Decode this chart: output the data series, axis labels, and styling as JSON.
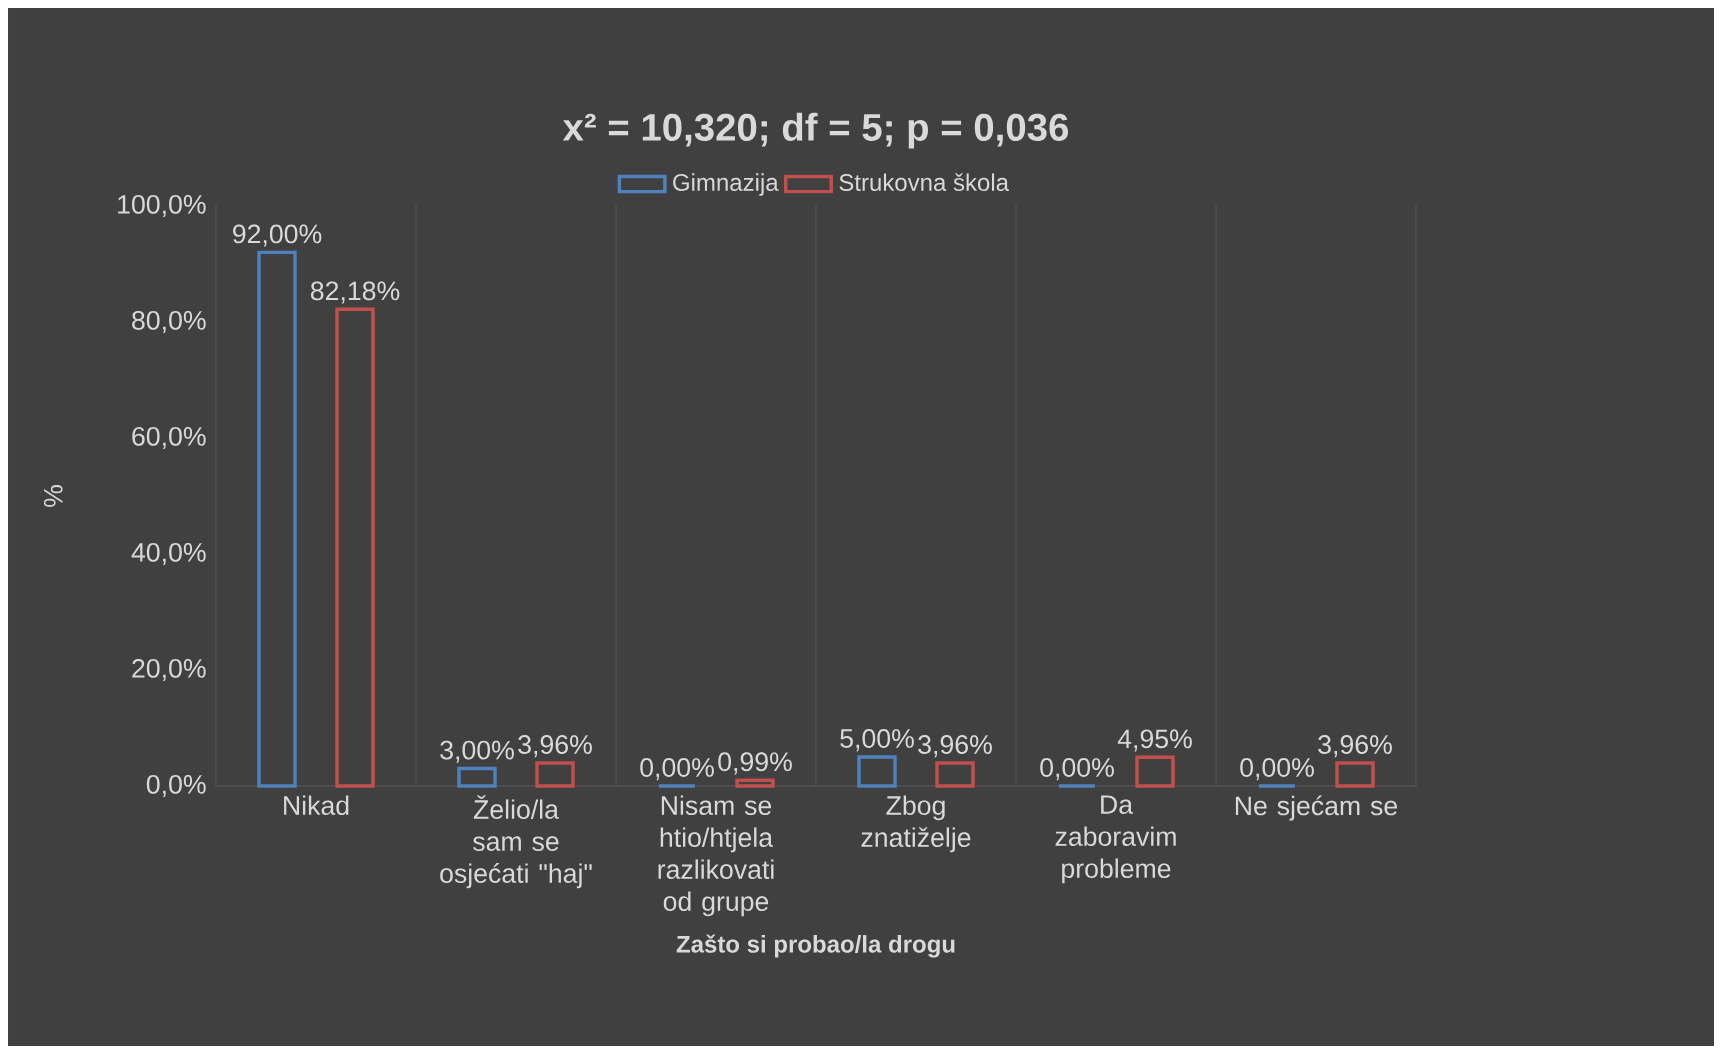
{
  "chart_data": {
    "type": "bar",
    "title": "x² = 10,320; df = 5; p = 0,036",
    "xlabel": "Zašto si probao/la drogu",
    "ylabel": "%",
    "categories": [
      "Nikad",
      "Želio/la sam se osjećati \"haj\"",
      "Nisam se htio/htjela razlikovati od grupe",
      "Zbog znatiželje",
      "Da zaboravim probleme",
      "Ne sjećam se"
    ],
    "series": [
      {
        "name": "Gimnazija",
        "color": "#4f81bd",
        "values": [
          92.0,
          3.0,
          0.0,
          5.0,
          0.0,
          0.0
        ],
        "value_labels": [
          "92,00%",
          "3,00%",
          "0,00%",
          "5,00%",
          "0,00%",
          "0,00%"
        ]
      },
      {
        "name": "Strukovna škola",
        "color": "#c0504d",
        "values": [
          82.18,
          3.96,
          0.99,
          3.96,
          4.95,
          3.96
        ],
        "value_labels": [
          "82,18%",
          "3,96%",
          "0,99%",
          "3,96%",
          "4,95%",
          "3,96%"
        ]
      }
    ],
    "ylim": [
      0,
      100
    ],
    "yticks": [
      {
        "value": 0,
        "label": "0,0%"
      },
      {
        "value": 20,
        "label": "20,0%"
      },
      {
        "value": 40,
        "label": "40,0%"
      },
      {
        "value": 60,
        "label": "60,0%"
      },
      {
        "value": 80,
        "label": "80,0%"
      },
      {
        "value": 100,
        "label": "100,0%"
      }
    ],
    "grid": "x",
    "legend": "top"
  }
}
